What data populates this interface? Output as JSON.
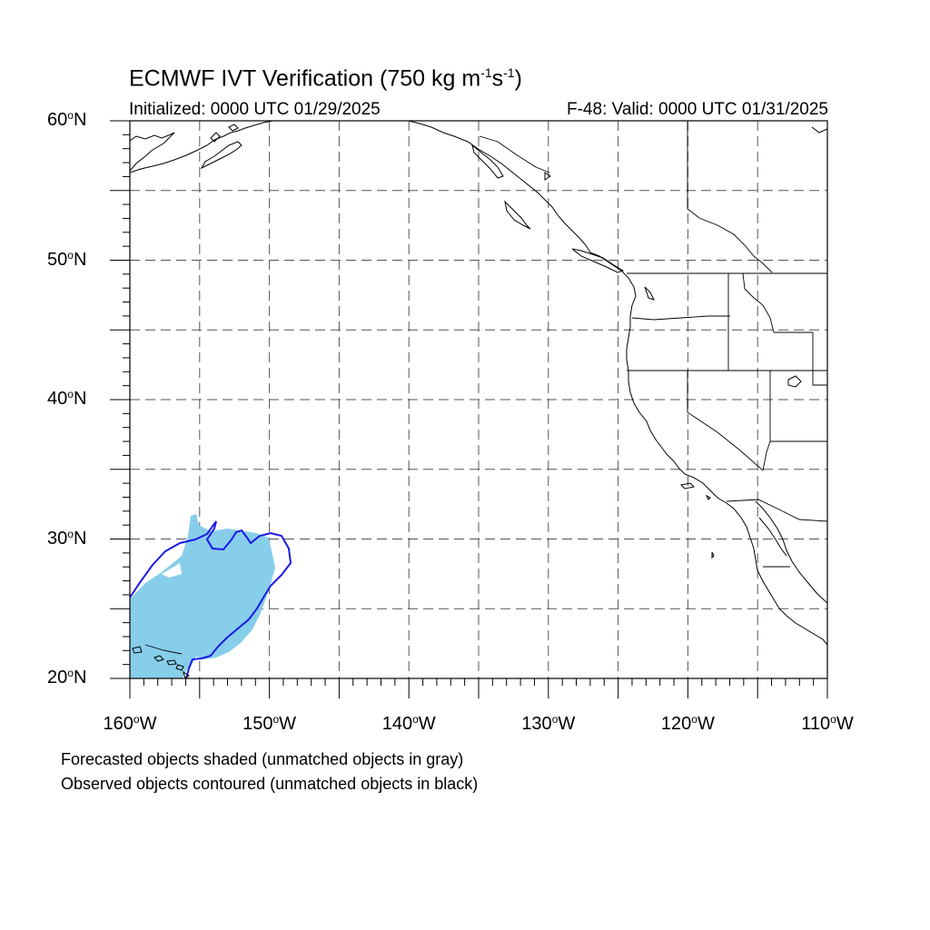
{
  "title": {
    "main_prefix": "ECMWF IVT Verification (750 kg m",
    "exp1": "-1",
    "mid": "s",
    "exp2": "-1",
    "suffix": ")"
  },
  "initialized": "Initialized: 0000 UTC 01/29/2025",
  "valid": "F-48: Valid: 0000 UTC 01/31/2025",
  "map": {
    "lat_range": [
      20,
      60
    ],
    "lon_range": [
      -160,
      -110
    ],
    "grid": "dashed, every 5 degrees",
    "lat_labels": [
      {
        "lat": 60,
        "num": "60",
        "deg": "o",
        "hemi": "N"
      },
      {
        "lat": 50,
        "num": "50",
        "deg": "o",
        "hemi": "N"
      },
      {
        "lat": 40,
        "num": "40",
        "deg": "o",
        "hemi": "N"
      },
      {
        "lat": 30,
        "num": "30",
        "deg": "o",
        "hemi": "N"
      },
      {
        "lat": 20,
        "num": "20",
        "deg": "o",
        "hemi": "N"
      }
    ],
    "lon_labels": [
      {
        "lon": -160,
        "num": "160",
        "deg": "o",
        "hemi": "W"
      },
      {
        "lon": -150,
        "num": "150",
        "deg": "o",
        "hemi": "W"
      },
      {
        "lon": -140,
        "num": "140",
        "deg": "o",
        "hemi": "W"
      },
      {
        "lon": -130,
        "num": "130",
        "deg": "o",
        "hemi": "W"
      },
      {
        "lon": -120,
        "num": "120",
        "deg": "o",
        "hemi": "W"
      },
      {
        "lon": -110,
        "num": "110",
        "deg": "o",
        "hemi": "W"
      }
    ],
    "forecast_object_color": "#87ceeb",
    "observed_contour_color": "#1a1ae6",
    "coastline_color": "#000000",
    "grid_color": "#555555"
  },
  "notes": [
    "Forecasted objects shaded (unmatched objects in gray)",
    "Observed objects contoured (unmatched objects in black)"
  ]
}
